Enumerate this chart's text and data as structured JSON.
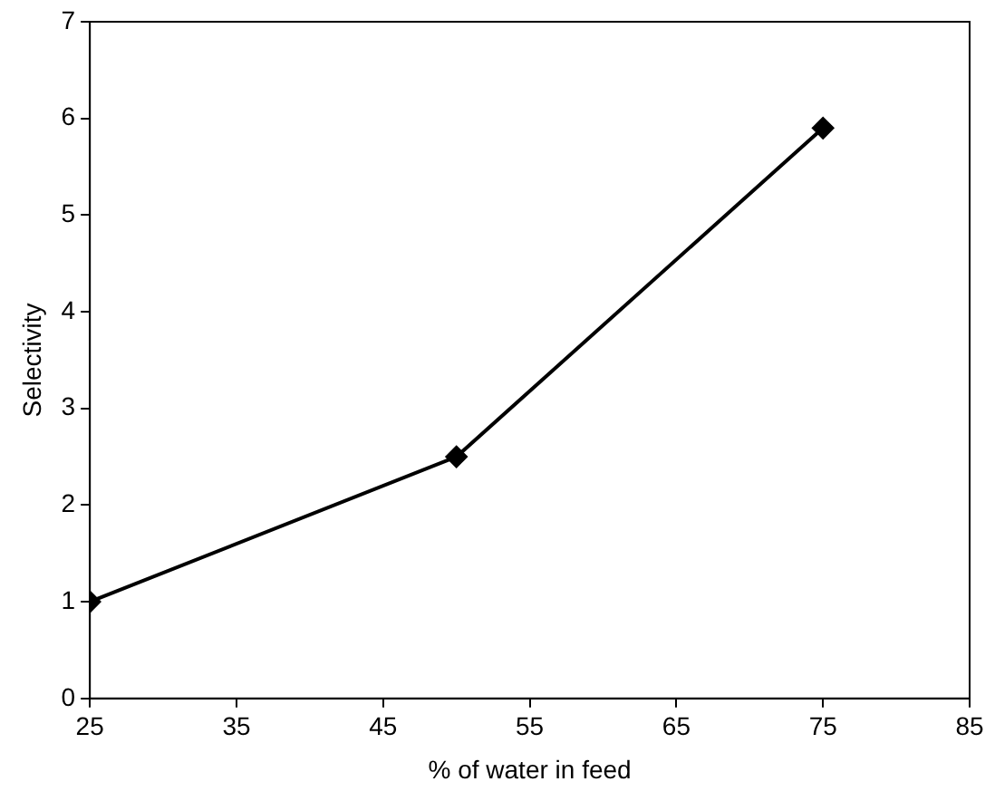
{
  "chart_data": {
    "type": "line",
    "xlabel": "% of water in feed",
    "ylabel": "Selectivity",
    "x": [
      25,
      50,
      75
    ],
    "series": [
      {
        "color": "#000000",
        "values": [
          1,
          2.5,
          5.9
        ]
      }
    ],
    "xlim": [
      25,
      85
    ],
    "xticks": [
      25,
      35,
      45,
      55,
      65,
      75,
      85
    ],
    "ylim": [
      0,
      7
    ],
    "yticks": [
      0,
      1,
      2,
      3,
      4,
      5,
      6,
      7
    ],
    "grid": false,
    "legend": false,
    "marker": "diamond",
    "line_style": "solid"
  }
}
